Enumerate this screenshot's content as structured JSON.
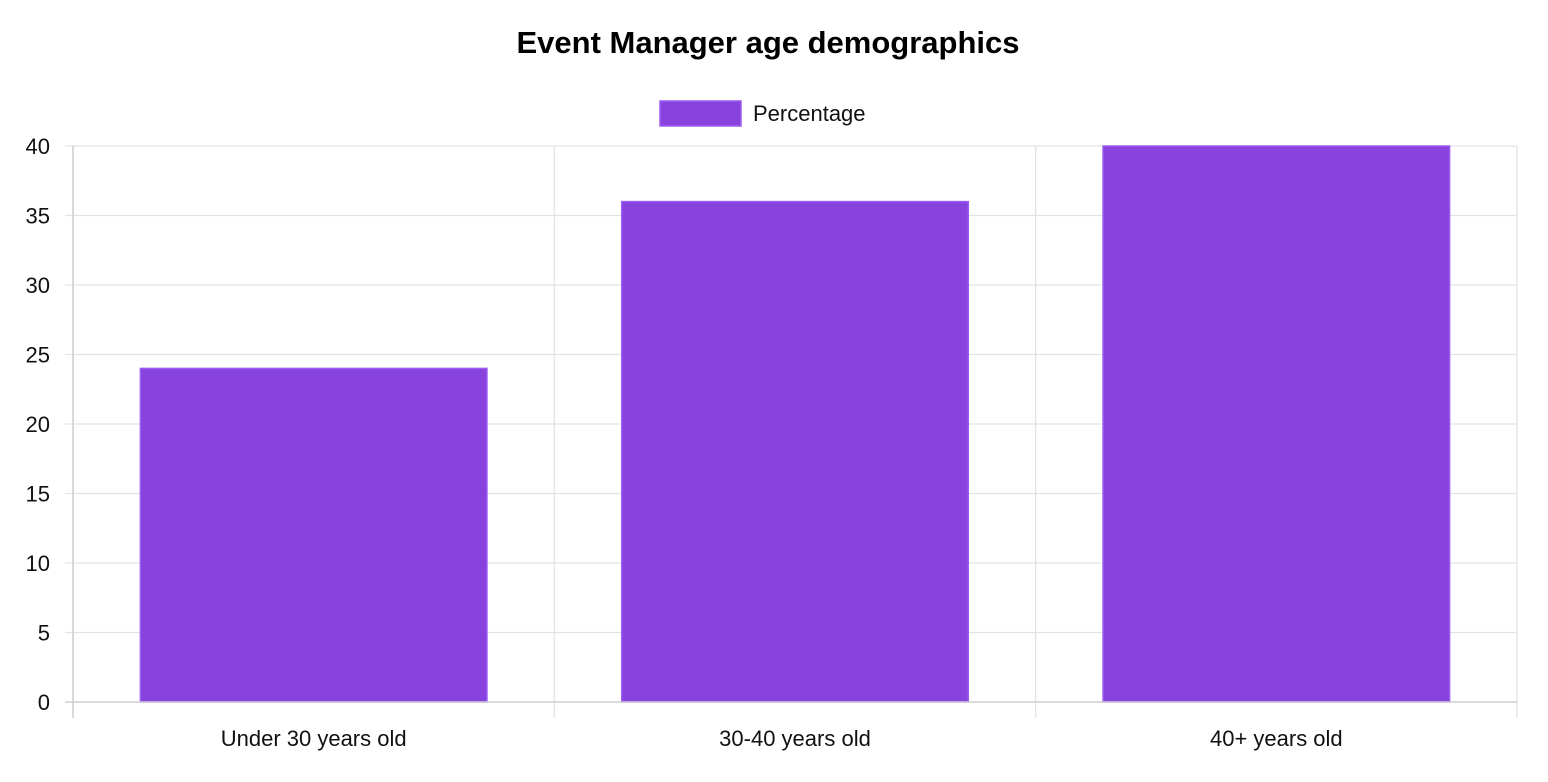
{
  "chart_data": {
    "type": "bar",
    "title": "Event Manager age demographics",
    "xlabel": "",
    "ylabel": "",
    "categories": [
      "Under 30 years old",
      "30-40 years old",
      "40+ years old"
    ],
    "series": [
      {
        "name": "Percentage",
        "values": [
          24,
          36,
          40
        ],
        "color": "#8842dd",
        "border_color": "#9b5cf0"
      }
    ],
    "ylim": [
      0,
      40
    ],
    "y_ticks": [
      0,
      5,
      10,
      15,
      20,
      25,
      30,
      35,
      40
    ],
    "grid": true,
    "legend_position": "top"
  }
}
